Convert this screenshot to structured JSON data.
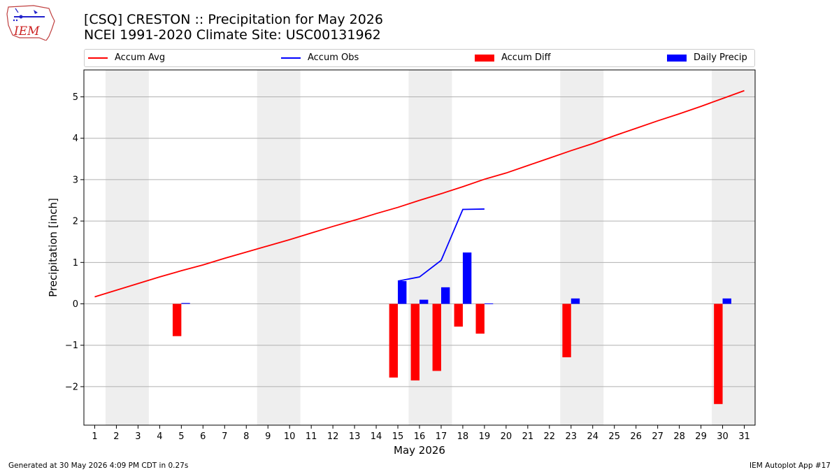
{
  "header": {
    "title_line1": "[CSQ] CRESTON :: Precipitation for May 2026",
    "title_line2": "NCEI 1991-2020 Climate Site: USC00131962",
    "logo_text": "IEM"
  },
  "legend": {
    "placement": "top",
    "items": [
      {
        "label": "Accum Avg",
        "kind": "line",
        "color": "#ff0000"
      },
      {
        "label": "Accum Obs",
        "kind": "line",
        "color": "#0000ff"
      },
      {
        "label": "Accum Diff",
        "kind": "bar",
        "color": "#ff0000"
      },
      {
        "label": "Daily Precip",
        "kind": "bar",
        "color": "#0000ff"
      }
    ]
  },
  "footer": {
    "left": "Generated at 30 May 2026 4:09 PM CDT in 0.27s",
    "right": "IEM Autoplot App #17"
  },
  "chart_data": {
    "type": "bar",
    "title": "[CSQ] CRESTON :: Precipitation for May 2026",
    "subtitle": "NCEI 1991-2020 Climate Site: USC00131962",
    "xlabel": "May 2026",
    "ylabel": "Precipitation [inch]",
    "xlim": [
      0.5,
      31.5
    ],
    "ylim": [
      -2.93,
      5.65
    ],
    "yticks": [
      -2,
      -1,
      0,
      1,
      2,
      3,
      4,
      5
    ],
    "ytick_labels": [
      "−2",
      "−1",
      "0",
      "1",
      "2",
      "3",
      "4",
      "5"
    ],
    "x": [
      1,
      2,
      3,
      4,
      5,
      6,
      7,
      8,
      9,
      10,
      11,
      12,
      13,
      14,
      15,
      16,
      17,
      18,
      19,
      20,
      21,
      22,
      23,
      24,
      25,
      26,
      27,
      28,
      29,
      30,
      31
    ],
    "xtick_labels": [
      "1",
      "2",
      "3",
      "4",
      "5",
      "6",
      "7",
      "8",
      "9",
      "10",
      "11",
      "12",
      "13",
      "14",
      "15",
      "16",
      "17",
      "18",
      "19",
      "20",
      "21",
      "22",
      "23",
      "24",
      "25",
      "26",
      "27",
      "28",
      "29",
      "30",
      "31"
    ],
    "grid": "horizontal",
    "weekend_shading": [
      [
        2,
        3
      ],
      [
        9,
        10
      ],
      [
        16,
        17
      ],
      [
        23,
        24
      ],
      [
        30,
        31
      ]
    ],
    "series": [
      {
        "name": "Accum Avg",
        "kind": "line",
        "color": "#ff0000",
        "x": [
          1,
          2,
          3,
          4,
          5,
          6,
          7,
          8,
          9,
          10,
          11,
          12,
          13,
          14,
          15,
          16,
          17,
          18,
          19,
          20,
          21,
          22,
          23,
          24,
          25,
          26,
          27,
          28,
          29,
          30,
          31
        ],
        "values": [
          0.17,
          0.33,
          0.49,
          0.65,
          0.8,
          0.94,
          1.1,
          1.25,
          1.4,
          1.55,
          1.71,
          1.87,
          2.02,
          2.18,
          2.33,
          2.5,
          2.66,
          2.83,
          3.01,
          3.16,
          3.34,
          3.52,
          3.7,
          3.87,
          4.06,
          4.24,
          4.42,
          4.59,
          4.77,
          4.96,
          5.15
        ]
      },
      {
        "name": "Accum Obs",
        "kind": "line",
        "color": "#0000ff",
        "x": [
          15,
          16,
          17,
          18,
          19
        ],
        "values": [
          0.55,
          0.65,
          1.05,
          2.28,
          2.29
        ]
      },
      {
        "name": "Accum Diff",
        "kind": "bar",
        "color": "#ff0000",
        "offset": -0.2,
        "x": [
          5,
          15,
          16,
          17,
          18,
          19,
          23,
          30
        ],
        "values": [
          -0.78,
          -1.78,
          -1.85,
          -1.62,
          -0.55,
          -0.72,
          -1.29,
          -2.42
        ]
      },
      {
        "name": "Daily Precip",
        "kind": "bar",
        "color": "#0000ff",
        "offset": 0.2,
        "x": [
          5,
          15,
          16,
          17,
          18,
          19,
          23,
          30
        ],
        "values": [
          0.02,
          0.55,
          0.1,
          0.4,
          1.24,
          0.01,
          0.13,
          0.13
        ]
      }
    ]
  }
}
